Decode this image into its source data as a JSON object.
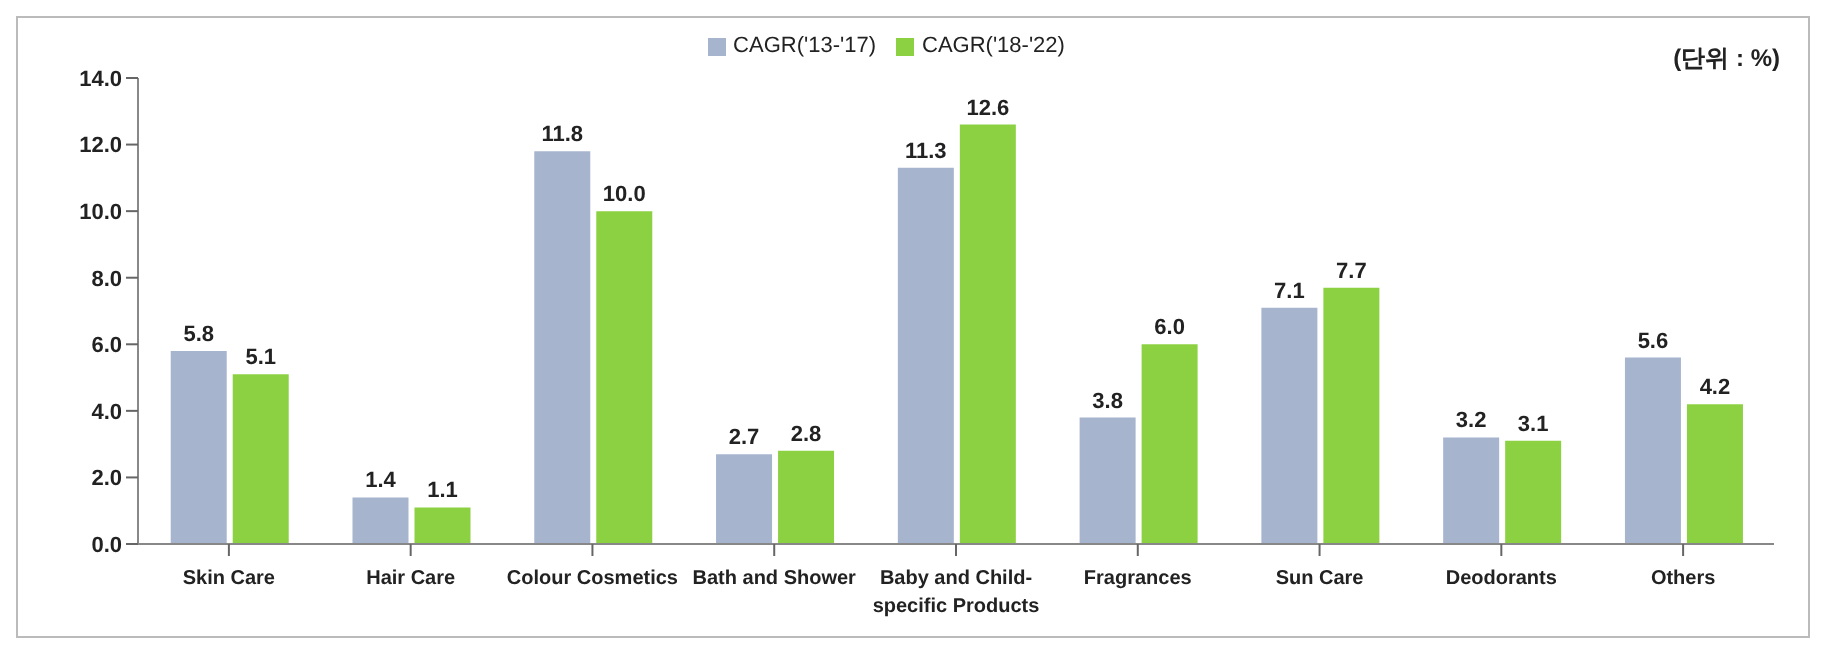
{
  "chart_data": {
    "type": "bar",
    "categories": [
      "Skin Care",
      "Hair Care",
      "Colour Cosmetics",
      "Bath and Shower",
      "Baby and Child-specific Products",
      "Fragrances",
      "Sun Care",
      "Deodorants",
      "Others"
    ],
    "series": [
      {
        "name": "CAGR('13-'17)",
        "color": "#a6b4ce",
        "values": [
          5.8,
          1.4,
          11.8,
          2.7,
          11.3,
          3.8,
          7.1,
          3.2,
          5.6
        ],
        "value_labels": [
          "5.8",
          "1.4",
          "11.8",
          "2.7",
          "11.3",
          "3.8",
          "7.1",
          "3.2",
          "5.6"
        ]
      },
      {
        "name": "CAGR('18-'22)",
        "color": "#8cd142",
        "values": [
          5.1,
          1.1,
          10,
          2.8,
          12.6,
          6,
          7.7,
          3.1,
          4.2
        ],
        "value_labels": [
          "5.1",
          "1.1",
          "10.0",
          "2.8",
          "12.6",
          "6.0",
          "7.7",
          "3.1",
          "4.2"
        ]
      }
    ],
    "ylim": [
      0,
      14
    ],
    "yticks": [
      {
        "value": 0,
        "label": "0.0"
      },
      {
        "value": 2,
        "label": "2.0"
      },
      {
        "value": 4,
        "label": "4.0"
      },
      {
        "value": 6,
        "label": "6.0"
      },
      {
        "value": 8,
        "label": "8.0"
      },
      {
        "value": 10,
        "label": "10.0"
      },
      {
        "value": 12,
        "label": "12.0"
      },
      {
        "value": 14,
        "label": "14.0"
      }
    ],
    "grid": false,
    "legend": "top",
    "annotations": [
      "(단위 : %)"
    ]
  }
}
